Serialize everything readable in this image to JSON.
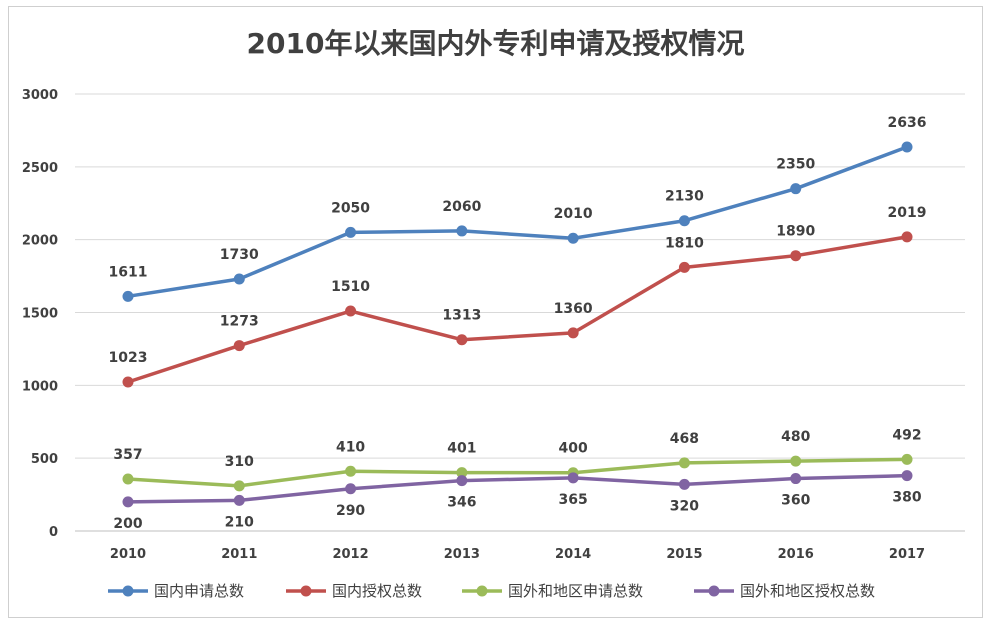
{
  "chart_data": {
    "type": "line",
    "title": "2010年以来国内外专利申请及授权情况",
    "xlabel": "",
    "ylabel": "",
    "categories": [
      "2010",
      "2011",
      "2012",
      "2013",
      "2014",
      "2015",
      "2016",
      "2017"
    ],
    "ylim": [
      0,
      3000
    ],
    "yticks": [
      "0",
      "500",
      "1000",
      "1500",
      "2000",
      "2500",
      "3000"
    ],
    "grid": true,
    "legend_position": "bottom",
    "series": [
      {
        "name": "国内申请总数",
        "color": "#4e81bd",
        "values": [
          1611,
          1730,
          2050,
          2060,
          2010,
          2130,
          2350,
          2636
        ],
        "labels": [
          "1611",
          "1730",
          "2050",
          "2060",
          "2010",
          "2130",
          "2350",
          "2636"
        ],
        "label_pos": "above"
      },
      {
        "name": "国内授权总数",
        "color": "#c0504d",
        "values": [
          1023,
          1273,
          1510,
          1313,
          1360,
          1810,
          1890,
          2019
        ],
        "labels": [
          "1023",
          "1273",
          "1510",
          "1313",
          "1360",
          "1810",
          "1890",
          "2019"
        ],
        "label_pos": "above"
      },
      {
        "name": "国外和地区申请总数",
        "color": "#9bbb59",
        "values": [
          357,
          310,
          410,
          401,
          400,
          468,
          480,
          492
        ],
        "labels": [
          "357",
          "310",
          "410",
          "401",
          "400",
          "468",
          "480",
          "492"
        ],
        "label_pos": "above"
      },
      {
        "name": "国外和地区授权总数",
        "color": "#8064a2",
        "values": [
          200,
          210,
          290,
          346,
          365,
          320,
          360,
          380
        ],
        "labels": [
          "200",
          "210",
          "290",
          "346",
          "365",
          "320",
          "360",
          "380"
        ],
        "label_pos": "below"
      }
    ]
  }
}
